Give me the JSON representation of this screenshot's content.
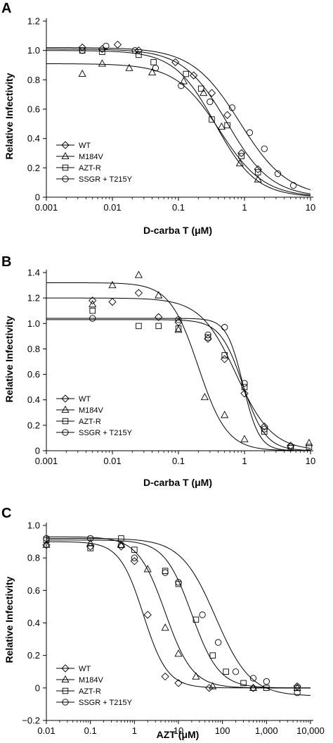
{
  "chart_data": [
    {
      "panel_label": "A",
      "type": "scatter",
      "xscale": "log",
      "xlim": [
        0.001,
        10
      ],
      "ylim": [
        0,
        1.2
      ],
      "xlabel": "D-carba T (μM)",
      "ylabel": "Relative Infectivity",
      "xtick_labels": [
        "0.001",
        "0.01",
        "0.1",
        "1",
        "10"
      ],
      "ytick_labels": [
        "0",
        "0.2",
        "0.4",
        "0.6",
        "0.8",
        "1.0",
        "1.2"
      ],
      "legend_position": "bottom-left",
      "series": [
        {
          "name": "WT",
          "marker": "diamond",
          "fit": {
            "top": 1.01,
            "bottom": 0,
            "ec50": 0.55,
            "hill": 1.3
          },
          "points": [
            [
              0.0035,
              1.02
            ],
            [
              0.007,
              1.01
            ],
            [
              0.012,
              1.04
            ],
            [
              0.025,
              1.0
            ],
            [
              0.09,
              0.92
            ],
            [
              0.17,
              0.83
            ],
            [
              0.32,
              0.71
            ],
            [
              0.55,
              0.56
            ],
            [
              0.9,
              0.3
            ],
            [
              1.6,
              0.19
            ]
          ]
        },
        {
          "name": "M184V",
          "marker": "triangle",
          "fit": {
            "top": 0.91,
            "bottom": 0,
            "ec50": 0.42,
            "hill": 1.3
          },
          "points": [
            [
              0.0035,
              0.84
            ],
            [
              0.007,
              0.91
            ],
            [
              0.018,
              0.88
            ],
            [
              0.04,
              0.85
            ],
            [
              0.12,
              0.79
            ],
            [
              0.24,
              0.71
            ],
            [
              0.45,
              0.48
            ],
            [
              0.85,
              0.23
            ],
            [
              1.6,
              0.12
            ]
          ]
        },
        {
          "name": "AZT-R",
          "marker": "square",
          "fit": {
            "top": 1.0,
            "bottom": 0,
            "ec50": 0.36,
            "hill": 1.4
          },
          "points": [
            [
              0.0035,
              1.0
            ],
            [
              0.007,
              0.99
            ],
            [
              0.025,
              0.97
            ],
            [
              0.042,
              0.92
            ],
            [
              0.13,
              0.84
            ],
            [
              0.22,
              0.74
            ],
            [
              0.32,
              0.53
            ],
            [
              0.55,
              0.49
            ],
            [
              0.9,
              0.28
            ],
            [
              1.6,
              0.17
            ]
          ]
        },
        {
          "name": "SSGR + T215Y",
          "marker": "circle",
          "fit": {
            "top": 1.02,
            "bottom": 0,
            "ec50": 0.85,
            "hill": 1.2
          },
          "points": [
            [
              0.0035,
              1.0
            ],
            [
              0.008,
              1.03
            ],
            [
              0.022,
              1.0
            ],
            [
              0.045,
              0.88
            ],
            [
              0.11,
              0.76
            ],
            [
              0.3,
              0.65
            ],
            [
              0.65,
              0.61
            ],
            [
              1.2,
              0.44
            ],
            [
              2.0,
              0.33
            ],
            [
              3.2,
              0.16
            ],
            [
              5.5,
              0.08
            ]
          ]
        }
      ]
    },
    {
      "panel_label": "B",
      "type": "scatter",
      "xscale": "log",
      "xlim": [
        0.001,
        10
      ],
      "ylim": [
        0,
        1.4
      ],
      "xlabel": "D-carba T (μM)",
      "ylabel": "Relative Infectivity",
      "xtick_labels": [
        "0.001",
        "0.01",
        "0.1",
        "1",
        "10"
      ],
      "ytick_labels": [
        "0",
        "0.2",
        "0.4",
        "0.6",
        "0.8",
        "1.0",
        "1.2",
        "1.4"
      ],
      "legend_position": "bottom-left",
      "series": [
        {
          "name": "WT",
          "marker": "diamond",
          "fit": {
            "top": 1.2,
            "bottom": 0,
            "ec50": 0.75,
            "hill": 1.6
          },
          "points": [
            [
              0.005,
              1.18
            ],
            [
              0.01,
              1.17
            ],
            [
              0.025,
              1.24
            ],
            [
              0.05,
              1.05
            ],
            [
              0.1,
              1.01
            ],
            [
              0.28,
              0.88
            ],
            [
              0.5,
              0.72
            ],
            [
              1.0,
              0.45
            ],
            [
              2.0,
              0.19
            ],
            [
              5.0,
              0.04
            ]
          ]
        },
        {
          "name": "M184V",
          "marker": "triangle",
          "fit": {
            "top": 1.32,
            "bottom": 0,
            "ec50": 0.2,
            "hill": 2.0
          },
          "points": [
            [
              0.005,
              1.15
            ],
            [
              0.01,
              1.3
            ],
            [
              0.025,
              1.38
            ],
            [
              0.05,
              1.22
            ],
            [
              0.1,
              0.95
            ],
            [
              0.25,
              0.42
            ],
            [
              0.5,
              0.28
            ],
            [
              1.0,
              0.09
            ],
            [
              9.5,
              0.06
            ]
          ]
        },
        {
          "name": "AZT-R",
          "marker": "square",
          "fit": {
            "top": 1.03,
            "bottom": 0,
            "ec50": 0.95,
            "hill": 2.5
          },
          "points": [
            [
              0.005,
              1.1
            ],
            [
              0.025,
              0.98
            ],
            [
              0.05,
              0.98
            ],
            [
              0.1,
              0.96
            ],
            [
              0.28,
              0.89
            ],
            [
              0.5,
              0.75
            ],
            [
              1.0,
              0.5
            ],
            [
              2.0,
              0.15
            ],
            [
              5.0,
              0.02
            ],
            [
              9.5,
              0.03
            ]
          ]
        },
        {
          "name": "SSGR + T215Y",
          "marker": "circle",
          "fit": {
            "top": 1.04,
            "bottom": 0,
            "ec50": 0.95,
            "hill": 3.5
          },
          "points": [
            [
              0.005,
              1.04
            ],
            [
              0.1,
              1.03
            ],
            [
              0.28,
              0.91
            ],
            [
              0.5,
              0.97
            ],
            [
              1.0,
              0.53
            ],
            [
              2.0,
              0.17
            ],
            [
              5.0,
              0.03
            ]
          ]
        }
      ]
    },
    {
      "panel_label": "C",
      "type": "scatter",
      "xscale": "log",
      "xlim": [
        0.01,
        10000
      ],
      "ylim": [
        -0.2,
        1.0
      ],
      "xlabel": "AZT (μM)",
      "ylabel": "Relative Infectivity",
      "xtick_labels": [
        "0.01",
        "0.1",
        "1",
        "10",
        "100",
        "1,000",
        "10,000"
      ],
      "ytick_labels": [
        "−0.2",
        "0",
        "0.2",
        "0.4",
        "0.6",
        "0.8",
        "1.0"
      ],
      "legend_position": "bottom-left",
      "series": [
        {
          "name": "WT",
          "marker": "diamond",
          "fit": {
            "top": 0.9,
            "bottom": 0,
            "ec50": 1.6,
            "hill": 1.6
          },
          "points": [
            [
              0.01,
              0.88
            ],
            [
              0.1,
              0.87
            ],
            [
              0.5,
              0.87
            ],
            [
              1.0,
              0.78
            ],
            [
              2.0,
              0.45
            ],
            [
              5.0,
              0.07
            ],
            [
              10.0,
              0.03
            ],
            [
              50.0,
              0.0
            ],
            [
              500.0,
              0.0
            ],
            [
              5000.0,
              0.01
            ]
          ]
        },
        {
          "name": "M184V",
          "marker": "triangle",
          "fit": {
            "top": 0.93,
            "bottom": 0,
            "ec50": 5.0,
            "hill": 1.4
          },
          "points": [
            [
              0.01,
              0.88
            ],
            [
              0.1,
              0.89
            ],
            [
              0.5,
              0.88
            ],
            [
              2.0,
              0.73
            ],
            [
              5.0,
              0.37
            ],
            [
              10.0,
              0.21
            ],
            [
              25.0,
              0.07
            ],
            [
              60.0,
              0.01
            ],
            [
              500.0,
              0.0
            ],
            [
              5000.0,
              0.0
            ]
          ]
        },
        {
          "name": "AZT-R",
          "marker": "square",
          "fit": {
            "top": 0.91,
            "bottom": 0,
            "ec50": 20.0,
            "hill": 1.4
          },
          "points": [
            [
              0.01,
              0.91
            ],
            [
              0.1,
              0.86
            ],
            [
              0.5,
              0.92
            ],
            [
              1.0,
              0.85
            ],
            [
              5.0,
              0.72
            ],
            [
              10.0,
              0.64
            ],
            [
              25.0,
              0.42
            ],
            [
              60.0,
              0.2
            ],
            [
              120.0,
              0.1
            ],
            [
              300.0,
              0.03
            ],
            [
              1000.0,
              0.0
            ],
            [
              5000.0,
              0.0
            ]
          ]
        },
        {
          "name": "SSGR + T215Y",
          "marker": "circle",
          "fit": {
            "top": 0.92,
            "bottom": -0.05,
            "ec50": 70.0,
            "hill": 1.1
          },
          "points": [
            [
              0.01,
              0.92
            ],
            [
              0.1,
              0.92
            ],
            [
              0.5,
              0.88
            ],
            [
              1.0,
              0.8
            ],
            [
              5.0,
              0.71
            ],
            [
              10.0,
              0.65
            ],
            [
              35.0,
              0.45
            ],
            [
              80.0,
              0.28
            ],
            [
              200.0,
              0.1
            ],
            [
              500.0,
              0.06
            ],
            [
              1000.0,
              0.04
            ],
            [
              5000.0,
              -0.03
            ]
          ]
        }
      ]
    }
  ]
}
